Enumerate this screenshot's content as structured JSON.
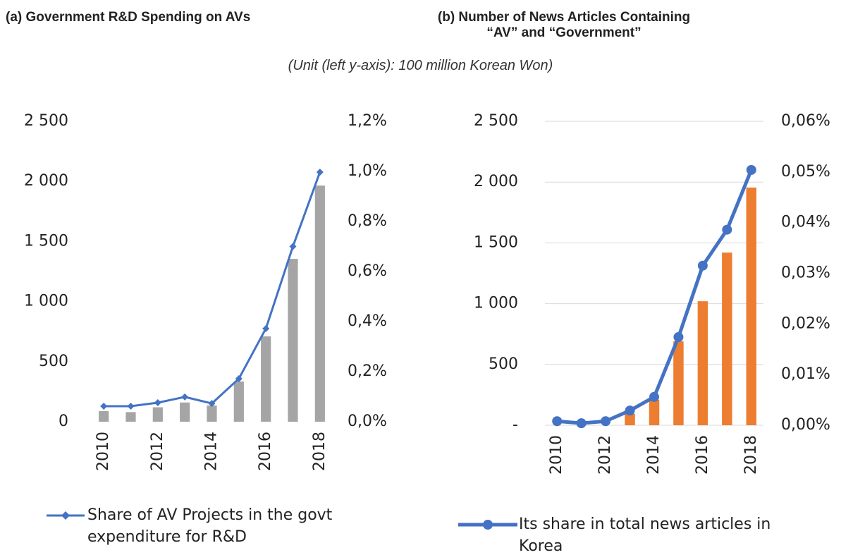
{
  "subtitle": "(Unit (left y-axis): 100 million Korean Won)",
  "chart_data": [
    {
      "type": "bar",
      "title": "(a) Government R&D Spending on AVs",
      "categories": [
        "2010",
        null,
        "2012",
        null,
        "2014",
        null,
        "2016",
        null,
        "2018"
      ],
      "series": [
        {
          "color": "#a5a5a5",
          "values": [
            88,
            80,
            120,
            160,
            135,
            335,
            710,
            1355,
            1965
          ]
        },
        {
          "type": "line",
          "marker": "diamond",
          "name": "Share of AV Projects in the govt expenditure for R&D",
          "color": "#4472c4",
          "axis": "y2",
          "values": [
            0.062,
            0.062,
            0.076,
            0.099,
            0.073,
            0.172,
            0.372,
            0.7,
            0.997
          ]
        }
      ],
      "ylim": [
        0,
        2500
      ],
      "yticks": [
        0,
        500,
        {
          "value": 1000,
          "label": "1 000"
        },
        {
          "value": 1500,
          "label": "1 500"
        },
        {
          "value": 2000,
          "label": "2 000"
        },
        {
          "value": 2500,
          "label": "2 500"
        }
      ],
      "y2lim": [
        0,
        1.2
      ],
      "y2ticks": [
        {
          "value": 0,
          "label": "0,0%"
        },
        {
          "value": 0.2,
          "label": "0,2%"
        },
        {
          "value": 0.4,
          "label": "0,4%"
        },
        {
          "value": 0.6,
          "label": "0,6%"
        },
        {
          "value": 0.8,
          "label": "0,8%"
        },
        {
          "value": 1.0,
          "label": "1,0%"
        },
        {
          "value": 1.2,
          "label": "1,2%"
        }
      ],
      "grid": false
    },
    {
      "type": "bar",
      "title": "(b) Number of News Articles Containing “AV” and “Government”",
      "categories": [
        "2010",
        null,
        "2012",
        null,
        "2014",
        null,
        "2016",
        null,
        "2018"
      ],
      "series": [
        {
          "color": "#ed7d31",
          "values": [
            0,
            0,
            0,
            95,
            210,
            690,
            1020,
            1420,
            1955
          ]
        },
        {
          "type": "line",
          "marker": "circle",
          "name": "Its share in total news articles in Korea",
          "color": "#4472c4",
          "axis": "y2",
          "values": [
            0.0008,
            0.0004,
            0.0008,
            0.0029,
            0.0056,
            0.0174,
            0.0315,
            0.0386,
            0.0504
          ]
        }
      ],
      "ylim": [
        0,
        2500
      ],
      "yticks": [
        {
          "value": 0,
          "label": "-"
        },
        500,
        {
          "value": 1000,
          "label": "1 000"
        },
        {
          "value": 1500,
          "label": "1 500"
        },
        {
          "value": 2000,
          "label": "2 000"
        },
        {
          "value": 2500,
          "label": "2 500"
        }
      ],
      "y2lim": [
        0,
        0.06
      ],
      "y2ticks": [
        {
          "value": 0,
          "label": "0,00%"
        },
        {
          "value": 0.01,
          "label": "0,01%"
        },
        {
          "value": 0.02,
          "label": "0,02%"
        },
        {
          "value": 0.03,
          "label": "0,03%"
        },
        {
          "value": 0.04,
          "label": "0,04%"
        },
        {
          "value": 0.05,
          "label": "0,05%"
        },
        {
          "value": 0.06,
          "label": "0,06%"
        }
      ],
      "grid": true
    }
  ]
}
